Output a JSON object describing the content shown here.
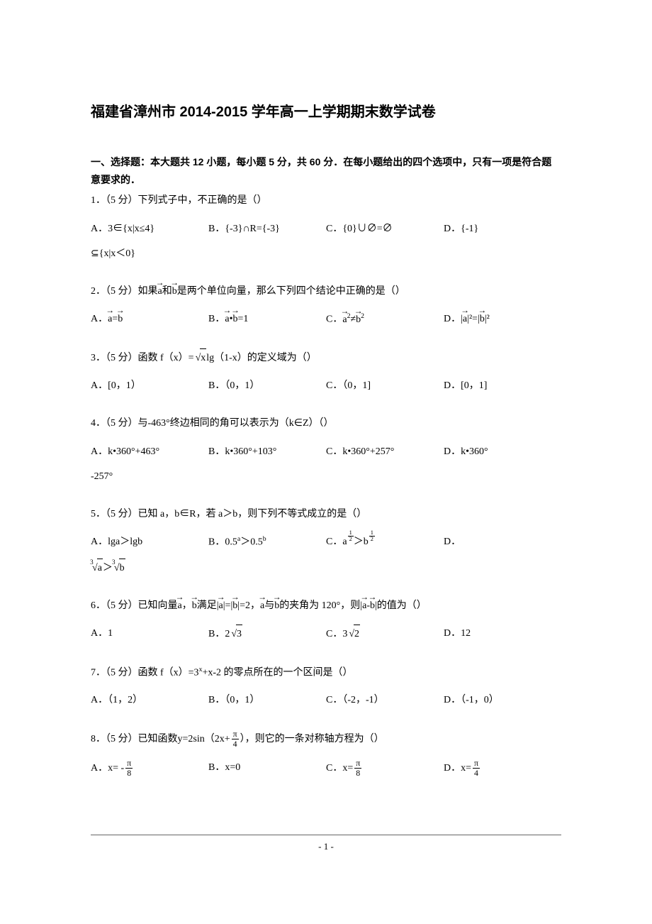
{
  "title": "福建省漳州市 2014-2015 学年高一上学期期末数学试卷",
  "section_header": "一、选择题：本大题共 12 小题，每小题 5 分，共 60 分．在每小题给出的四个选项中，只有一项是符合题意要求的．",
  "points_label": "（5 分）",
  "questions": {
    "q1": {
      "num": "1．",
      "text": "下列式子中，不正确的是（）",
      "optA": "A．3∈{x|x≤4}",
      "optB": "B．{-3}∩R={-3}",
      "optC": "C．{0}∪∅=∅",
      "optD": "D．{-1}",
      "extra": "⊆{x|x＜0}"
    },
    "q2": {
      "num": "2．",
      "text_prefix": "如果",
      "text_mid": "和",
      "text_suffix": "是两个单位向量，那么下列四个结论中正确的是（）",
      "vec_a": "a",
      "vec_b": "b",
      "optA_prefix": "A．",
      "optA_eq": "=",
      "optB_prefix": "B．",
      "optB_dot": "•",
      "optB_suffix": "=1",
      "optC_prefix": "C．",
      "optC_neq": "≠",
      "optD_prefix": "D．|",
      "optD_mid": "|²=|",
      "optD_suffix": "|²"
    },
    "q3": {
      "num": "3．",
      "text_prefix": "函数 f（x）=",
      "text_mid": "lg（1-x）的定义域为（）",
      "radicand": "x",
      "optA": "A．[0，1）",
      "optB": "B．（0，1）",
      "optC": "C．（0，1]",
      "optD": "D．[0，1]"
    },
    "q4": {
      "num": "4．",
      "text": "与-463°终边相同的角可以表示为（k∈Z）（）",
      "optA": "A．k•360°+463°",
      "optB": "B．k•360°+103°",
      "optC": "C．k•360°+257°",
      "optD": "D．k•360°",
      "extra": "-257°"
    },
    "q5": {
      "num": "5．",
      "text": "已知 a，b∈R，若 a＞b，则下列不等式成立的是（）",
      "optA": "A．lga＞lgb",
      "optB_prefix": "B．0.5",
      "optB_mid": "＞0.5",
      "optC_prefix": "C．",
      "optC_a": "a",
      "optC_gt": "＞",
      "optC_b": "b",
      "optD": "D．",
      "extra_a": "a",
      "extra_gt": "＞",
      "extra_b": "b",
      "sup_a": "a",
      "sup_b": "b",
      "half_num": "1",
      "half_den": "2"
    },
    "q6": {
      "num": "6．",
      "text_prefix": "已知向量",
      "vec_a": "a",
      "text_comma": "，",
      "vec_b": "b",
      "text_mid1": "满足|",
      "text_mid2": "|=|",
      "text_mid3": "|=2，",
      "text_mid4": "与",
      "text_mid5": "的夹角为 120°，则|",
      "text_mid6": "-",
      "text_suffix": "|的值为（）",
      "optA": "A．1",
      "optB_prefix": "B．",
      "optB_num": "2",
      "optB_rad": "3",
      "optC_prefix": "C．",
      "optC_num": "3",
      "optC_rad": "2",
      "optD": "D．12"
    },
    "q7": {
      "num": "7．",
      "text_prefix": "函数 f（x）=3",
      "text_suffix": "+x-2 的零点所在的一个区间是（）",
      "sup_x": "x",
      "optA": "A．（1，2）",
      "optB": "B．（0，1）",
      "optC": "C．（-2，-1）",
      "optD": "D．（-1，0）"
    },
    "q8": {
      "num": "8．",
      "text_prefix": "已知函数y=2sin（2x+",
      "text_suffix": "），则它的一条对称轴方程为（）",
      "pi": "π",
      "four": "4",
      "optA_prefix": "A．x= -",
      "optA_num": "π",
      "optA_den": "8",
      "optB": "B．x=0",
      "optC_prefix": "C．x=",
      "optC_num": "π",
      "optC_den": "8",
      "optD_prefix": "D．x=",
      "optD_num": "π",
      "optD_den": "4"
    }
  },
  "page_number": "- 1 -"
}
